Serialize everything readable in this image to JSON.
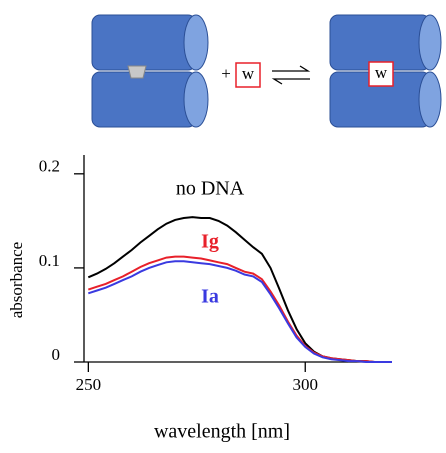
{
  "scheme": {
    "plus": "+",
    "guest_left": "w",
    "guest_right": "w"
  },
  "chart_data": {
    "type": "line",
    "x_label": "wavelength [nm]",
    "y_label": "absorbance",
    "x": [
      250,
      252,
      254,
      256,
      258,
      260,
      262,
      264,
      266,
      268,
      270,
      272,
      274,
      276,
      278,
      280,
      282,
      284,
      286,
      288,
      290,
      292,
      294,
      296,
      298,
      300,
      302,
      304,
      306,
      308,
      310,
      312,
      314,
      316,
      318,
      320
    ],
    "series": [
      {
        "name": "no DNA",
        "color": "#000000",
        "values": [
          0.09,
          0.094,
          0.099,
          0.105,
          0.112,
          0.119,
          0.127,
          0.134,
          0.141,
          0.147,
          0.151,
          0.153,
          0.154,
          0.153,
          0.153,
          0.15,
          0.145,
          0.138,
          0.13,
          0.122,
          0.115,
          0.1,
          0.078,
          0.055,
          0.035,
          0.02,
          0.011,
          0.006,
          0.004,
          0.003,
          0.002,
          0.001,
          0.001,
          0.0,
          0.0,
          0.0
        ]
      },
      {
        "name": "Ig",
        "color": "#e8202a",
        "values": [
          0.077,
          0.08,
          0.083,
          0.087,
          0.091,
          0.096,
          0.101,
          0.105,
          0.108,
          0.111,
          0.112,
          0.112,
          0.111,
          0.11,
          0.108,
          0.106,
          0.104,
          0.1,
          0.096,
          0.094,
          0.088,
          0.075,
          0.06,
          0.043,
          0.028,
          0.017,
          0.01,
          0.006,
          0.004,
          0.003,
          0.002,
          0.001,
          0.001,
          0.0,
          0.0,
          0.0
        ]
      },
      {
        "name": "Ia",
        "color": "#3a3ae0",
        "values": [
          0.073,
          0.076,
          0.079,
          0.083,
          0.087,
          0.091,
          0.096,
          0.1,
          0.103,
          0.106,
          0.107,
          0.107,
          0.106,
          0.105,
          0.104,
          0.102,
          0.1,
          0.097,
          0.093,
          0.091,
          0.085,
          0.072,
          0.057,
          0.041,
          0.026,
          0.016,
          0.009,
          0.005,
          0.003,
          0.002,
          0.001,
          0.001,
          0.0,
          0.0,
          0.0,
          0.0
        ]
      }
    ],
    "xlim": [
      249,
      320
    ],
    "ylim": [
      0,
      0.22
    ],
    "xticks": [
      250,
      300
    ],
    "yticks": [
      0,
      0.1,
      0.2
    ]
  }
}
